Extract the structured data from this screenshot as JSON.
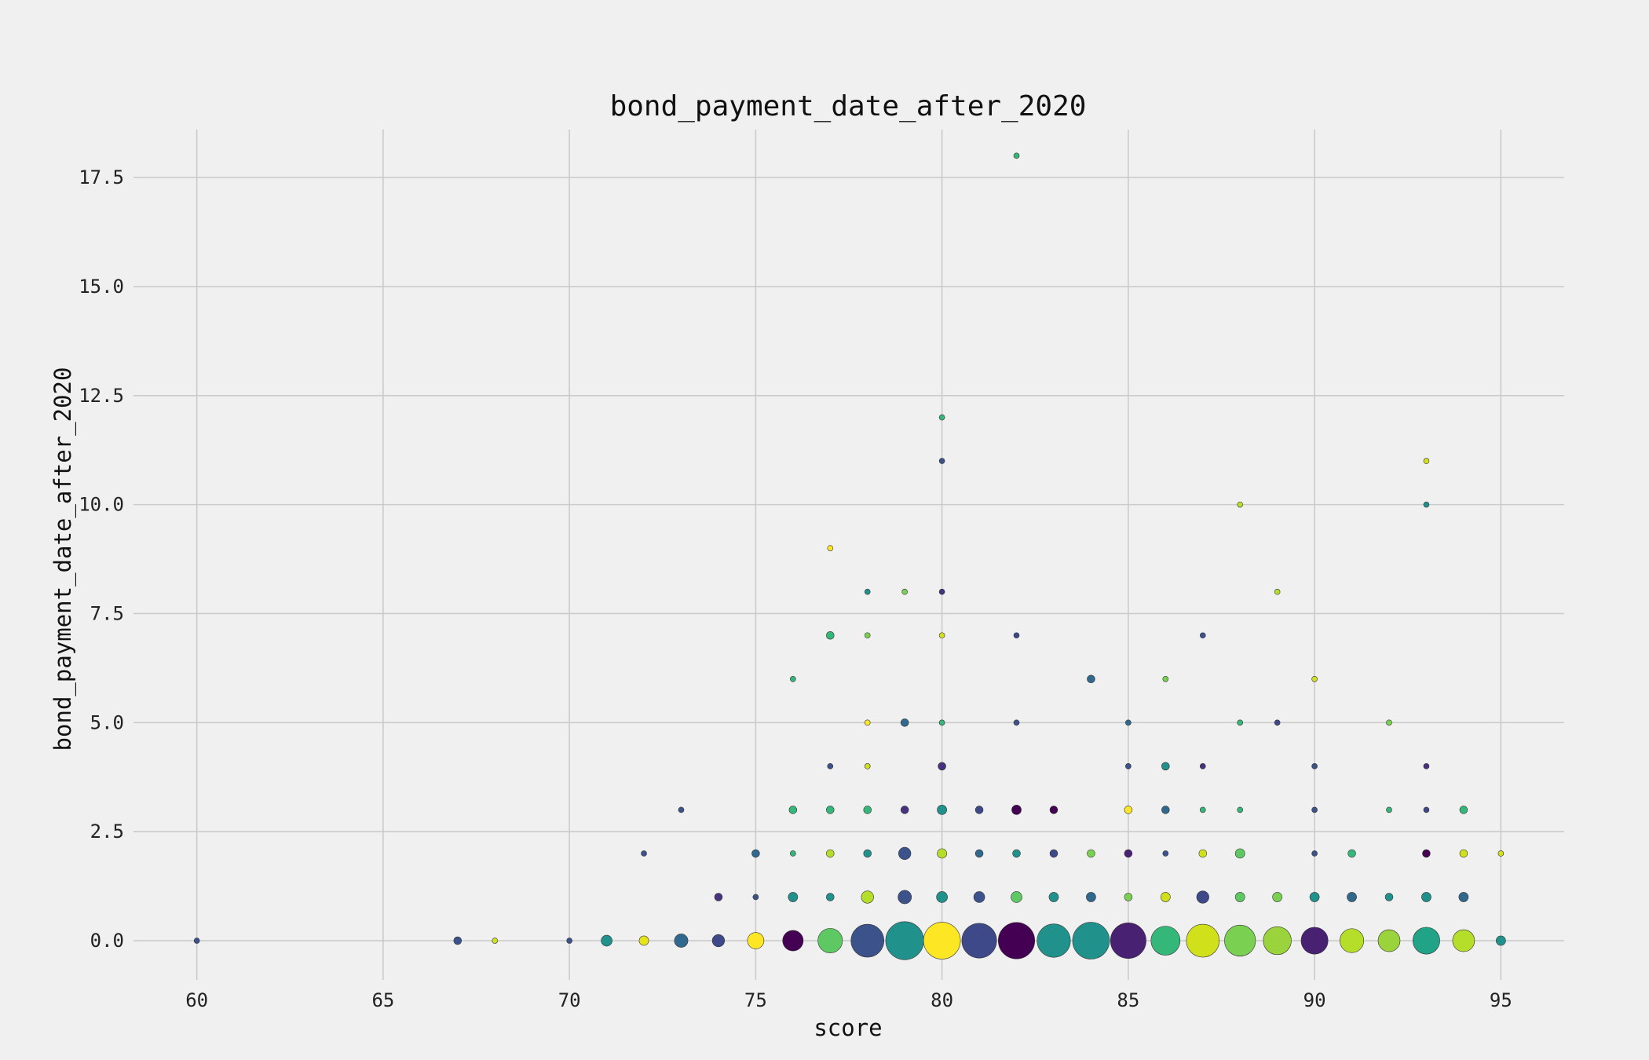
{
  "chart_data": {
    "type": "scatter",
    "title": "bond_payment_date_after_2020",
    "xlabel": "score",
    "ylabel": "bond_payment_date_after_2020",
    "xlim": [
      58.3,
      96.7
    ],
    "ylim": [
      -0.9,
      18.6
    ],
    "xticks": [
      60,
      65,
      70,
      75,
      80,
      85,
      90,
      95
    ],
    "yticks": [
      0.0,
      2.5,
      5.0,
      7.5,
      10.0,
      12.5,
      15.0,
      17.5
    ],
    "xtick_labels": [
      "60",
      "65",
      "70",
      "75",
      "80",
      "85",
      "90",
      "95"
    ],
    "ytick_labels": [
      "0.0",
      "2.5",
      "5.0",
      "7.5",
      "10.0",
      "12.5",
      "15.0",
      "17.5"
    ],
    "grid": true,
    "legend": "none",
    "colormap": [
      "#440154",
      "#3b528b",
      "#21918c",
      "#5ec962",
      "#fde725"
    ],
    "marker_size_meaning": "point size proportional to count of observations",
    "points": [
      {
        "x": 60,
        "y": 0,
        "size": 1,
        "color": "#3b528b"
      },
      {
        "x": 67,
        "y": 0,
        "size": 2,
        "color": "#3b528b"
      },
      {
        "x": 68,
        "y": 0,
        "size": 1,
        "color": "#d0e11c"
      },
      {
        "x": 70,
        "y": 0,
        "size": 1,
        "color": "#3b528b"
      },
      {
        "x": 71,
        "y": 0,
        "size": 4,
        "color": "#21918c"
      },
      {
        "x": 72,
        "y": 0,
        "size": 3,
        "color": "#e5e419"
      },
      {
        "x": 72,
        "y": 2,
        "size": 1,
        "color": "#3b528b"
      },
      {
        "x": 73,
        "y": 0,
        "size": 6,
        "color": "#31688e"
      },
      {
        "x": 73,
        "y": 3,
        "size": 1,
        "color": "#3b528b"
      },
      {
        "x": 74,
        "y": 0,
        "size": 5,
        "color": "#3e4989"
      },
      {
        "x": 74,
        "y": 1,
        "size": 2,
        "color": "#46327e"
      },
      {
        "x": 75,
        "y": 0,
        "size": 9,
        "color": "#fde725"
      },
      {
        "x": 75,
        "y": 1,
        "size": 1,
        "color": "#3b528b"
      },
      {
        "x": 75,
        "y": 2,
        "size": 2,
        "color": "#31688e"
      },
      {
        "x": 76,
        "y": 0,
        "size": 14,
        "color": "#440154"
      },
      {
        "x": 76,
        "y": 1,
        "size": 3,
        "color": "#21918c"
      },
      {
        "x": 76,
        "y": 2,
        "size": 1,
        "color": "#35b779"
      },
      {
        "x": 76,
        "y": 3,
        "size": 2,
        "color": "#35b779"
      },
      {
        "x": 76,
        "y": 6,
        "size": 1,
        "color": "#35b779"
      },
      {
        "x": 77,
        "y": 0,
        "size": 20,
        "color": "#5ec962"
      },
      {
        "x": 77,
        "y": 1,
        "size": 2,
        "color": "#21918c"
      },
      {
        "x": 77,
        "y": 2,
        "size": 2,
        "color": "#b5de2b"
      },
      {
        "x": 77,
        "y": 3,
        "size": 2,
        "color": "#35b779"
      },
      {
        "x": 77,
        "y": 4,
        "size": 1,
        "color": "#3b528b"
      },
      {
        "x": 77,
        "y": 7,
        "size": 2,
        "color": "#35b779"
      },
      {
        "x": 77,
        "y": 9,
        "size": 1,
        "color": "#fde725"
      },
      {
        "x": 78,
        "y": 0,
        "size": 36,
        "color": "#3b528b"
      },
      {
        "x": 78,
        "y": 1,
        "size": 5,
        "color": "#b5de2b"
      },
      {
        "x": 78,
        "y": 2,
        "size": 2,
        "color": "#21918c"
      },
      {
        "x": 78,
        "y": 3,
        "size": 2,
        "color": "#35b779"
      },
      {
        "x": 78,
        "y": 4,
        "size": 1,
        "color": "#d0e11c"
      },
      {
        "x": 78,
        "y": 5,
        "size": 1,
        "color": "#fde725"
      },
      {
        "x": 78,
        "y": 7,
        "size": 1,
        "color": "#7ad151"
      },
      {
        "x": 78,
        "y": 8,
        "size": 1,
        "color": "#21918c"
      },
      {
        "x": 79,
        "y": 0,
        "size": 48,
        "color": "#21918c"
      },
      {
        "x": 79,
        "y": 1,
        "size": 6,
        "color": "#3b528b"
      },
      {
        "x": 79,
        "y": 2,
        "size": 5,
        "color": "#3b528b"
      },
      {
        "x": 79,
        "y": 3,
        "size": 2,
        "color": "#46327e"
      },
      {
        "x": 79,
        "y": 5,
        "size": 2,
        "color": "#31688e"
      },
      {
        "x": 79,
        "y": 8,
        "size": 1,
        "color": "#7ad151"
      },
      {
        "x": 80,
        "y": 0,
        "size": 45,
        "color": "#fde725"
      },
      {
        "x": 80,
        "y": 1,
        "size": 4,
        "color": "#21918c"
      },
      {
        "x": 80,
        "y": 2,
        "size": 3,
        "color": "#b5de2b"
      },
      {
        "x": 80,
        "y": 3,
        "size": 3,
        "color": "#21918c"
      },
      {
        "x": 80,
        "y": 4,
        "size": 2,
        "color": "#46327e"
      },
      {
        "x": 80,
        "y": 5,
        "size": 1,
        "color": "#35b779"
      },
      {
        "x": 80,
        "y": 7,
        "size": 1,
        "color": "#d0e11c"
      },
      {
        "x": 80,
        "y": 8,
        "size": 1,
        "color": "#46327e"
      },
      {
        "x": 80,
        "y": 11,
        "size": 1,
        "color": "#3b528b"
      },
      {
        "x": 80,
        "y": 12,
        "size": 1,
        "color": "#35b779"
      },
      {
        "x": 81,
        "y": 0,
        "size": 40,
        "color": "#3e4989"
      },
      {
        "x": 81,
        "y": 1,
        "size": 4,
        "color": "#3b528b"
      },
      {
        "x": 81,
        "y": 2,
        "size": 2,
        "color": "#31688e"
      },
      {
        "x": 81,
        "y": 3,
        "size": 2,
        "color": "#3e4989"
      },
      {
        "x": 82,
        "y": 0,
        "size": 44,
        "color": "#440154"
      },
      {
        "x": 82,
        "y": 1,
        "size": 4,
        "color": "#5ec962"
      },
      {
        "x": 82,
        "y": 2,
        "size": 2,
        "color": "#21918c"
      },
      {
        "x": 82,
        "y": 3,
        "size": 3,
        "color": "#440154"
      },
      {
        "x": 82,
        "y": 5,
        "size": 1,
        "color": "#3b528b"
      },
      {
        "x": 82,
        "y": 7,
        "size": 1,
        "color": "#3e4989"
      },
      {
        "x": 82,
        "y": 18,
        "size": 1,
        "color": "#35b779"
      },
      {
        "x": 83,
        "y": 0,
        "size": 37,
        "color": "#21918c"
      },
      {
        "x": 83,
        "y": 1,
        "size": 3,
        "color": "#21918c"
      },
      {
        "x": 83,
        "y": 2,
        "size": 2,
        "color": "#3e4989"
      },
      {
        "x": 83,
        "y": 3,
        "size": 2,
        "color": "#440154"
      },
      {
        "x": 84,
        "y": 0,
        "size": 45,
        "color": "#21918c"
      },
      {
        "x": 84,
        "y": 1,
        "size": 3,
        "color": "#31688e"
      },
      {
        "x": 84,
        "y": 2,
        "size": 2,
        "color": "#7ad151"
      },
      {
        "x": 84,
        "y": 6,
        "size": 2,
        "color": "#31688e"
      },
      {
        "x": 85,
        "y": 0,
        "size": 42,
        "color": "#482173"
      },
      {
        "x": 85,
        "y": 1,
        "size": 2,
        "color": "#7ad151"
      },
      {
        "x": 85,
        "y": 2,
        "size": 2,
        "color": "#482173"
      },
      {
        "x": 85,
        "y": 3,
        "size": 2,
        "color": "#fde725"
      },
      {
        "x": 85,
        "y": 4,
        "size": 1,
        "color": "#3b528b"
      },
      {
        "x": 85,
        "y": 5,
        "size": 1,
        "color": "#31688e"
      },
      {
        "x": 86,
        "y": 0,
        "size": 28,
        "color": "#35b779"
      },
      {
        "x": 86,
        "y": 1,
        "size": 3,
        "color": "#d0e11c"
      },
      {
        "x": 86,
        "y": 2,
        "size": 1,
        "color": "#3b528b"
      },
      {
        "x": 86,
        "y": 3,
        "size": 2,
        "color": "#31688e"
      },
      {
        "x": 86,
        "y": 4,
        "size": 2,
        "color": "#21918c"
      },
      {
        "x": 86,
        "y": 6,
        "size": 1,
        "color": "#7ad151"
      },
      {
        "x": 87,
        "y": 0,
        "size": 36,
        "color": "#d0e11c"
      },
      {
        "x": 87,
        "y": 1,
        "size": 5,
        "color": "#3e4989"
      },
      {
        "x": 87,
        "y": 2,
        "size": 2,
        "color": "#d0e11c"
      },
      {
        "x": 87,
        "y": 3,
        "size": 1,
        "color": "#35b779"
      },
      {
        "x": 87,
        "y": 4,
        "size": 1,
        "color": "#46327e"
      },
      {
        "x": 87,
        "y": 7,
        "size": 1,
        "color": "#3b528b"
      },
      {
        "x": 88,
        "y": 0,
        "size": 32,
        "color": "#7ad151"
      },
      {
        "x": 88,
        "y": 1,
        "size": 3,
        "color": "#5ec962"
      },
      {
        "x": 88,
        "y": 2,
        "size": 3,
        "color": "#5ec962"
      },
      {
        "x": 88,
        "y": 3,
        "size": 1,
        "color": "#35b779"
      },
      {
        "x": 88,
        "y": 5,
        "size": 1,
        "color": "#35b779"
      },
      {
        "x": 88,
        "y": 10,
        "size": 1,
        "color": "#b5de2b"
      },
      {
        "x": 89,
        "y": 0,
        "size": 26,
        "color": "#9ad33c"
      },
      {
        "x": 89,
        "y": 1,
        "size": 3,
        "color": "#7ad151"
      },
      {
        "x": 89,
        "y": 5,
        "size": 1,
        "color": "#3e4989"
      },
      {
        "x": 89,
        "y": 8,
        "size": 1,
        "color": "#b5de2b"
      },
      {
        "x": 90,
        "y": 0,
        "size": 24,
        "color": "#482173"
      },
      {
        "x": 90,
        "y": 1,
        "size": 3,
        "color": "#21918c"
      },
      {
        "x": 90,
        "y": 2,
        "size": 1,
        "color": "#3b528b"
      },
      {
        "x": 90,
        "y": 3,
        "size": 1,
        "color": "#3b528b"
      },
      {
        "x": 90,
        "y": 4,
        "size": 1,
        "color": "#3b528b"
      },
      {
        "x": 90,
        "y": 6,
        "size": 1,
        "color": "#d0e11c"
      },
      {
        "x": 91,
        "y": 0,
        "size": 19,
        "color": "#b5de2b"
      },
      {
        "x": 91,
        "y": 1,
        "size": 3,
        "color": "#31688e"
      },
      {
        "x": 91,
        "y": 2,
        "size": 2,
        "color": "#35b779"
      },
      {
        "x": 92,
        "y": 0,
        "size": 16,
        "color": "#9ad33c"
      },
      {
        "x": 92,
        "y": 1,
        "size": 2,
        "color": "#21918c"
      },
      {
        "x": 92,
        "y": 3,
        "size": 1,
        "color": "#35b779"
      },
      {
        "x": 92,
        "y": 5,
        "size": 1,
        "color": "#7ad151"
      },
      {
        "x": 93,
        "y": 0,
        "size": 24,
        "color": "#20a386"
      },
      {
        "x": 93,
        "y": 1,
        "size": 3,
        "color": "#21918c"
      },
      {
        "x": 93,
        "y": 2,
        "size": 2,
        "color": "#440154"
      },
      {
        "x": 93,
        "y": 3,
        "size": 1,
        "color": "#3e4989"
      },
      {
        "x": 93,
        "y": 4,
        "size": 1,
        "color": "#46327e"
      },
      {
        "x": 93,
        "y": 10,
        "size": 1,
        "color": "#21918c"
      },
      {
        "x": 93,
        "y": 11,
        "size": 1,
        "color": "#d0e11c"
      },
      {
        "x": 94,
        "y": 0,
        "size": 16,
        "color": "#b5de2b"
      },
      {
        "x": 94,
        "y": 1,
        "size": 3,
        "color": "#31688e"
      },
      {
        "x": 94,
        "y": 2,
        "size": 2,
        "color": "#d0e11c"
      },
      {
        "x": 94,
        "y": 3,
        "size": 2,
        "color": "#35b779"
      },
      {
        "x": 95,
        "y": 0,
        "size": 3,
        "color": "#21918c"
      },
      {
        "x": 95,
        "y": 2,
        "size": 1,
        "color": "#d0e11c"
      }
    ]
  }
}
